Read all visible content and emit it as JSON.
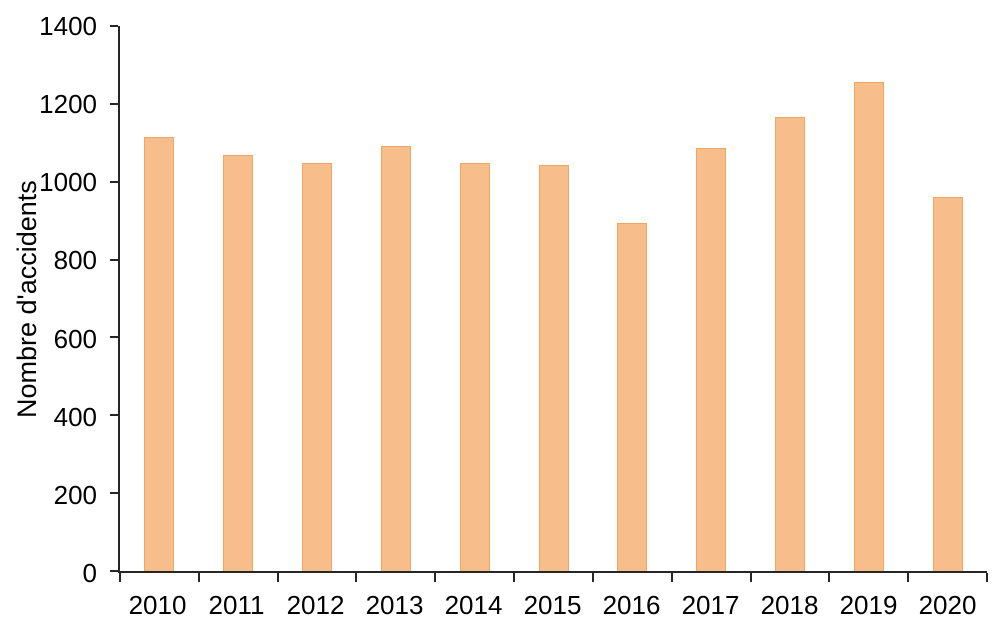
{
  "chart_data": {
    "type": "bar",
    "title": "",
    "categories": [
      "2010",
      "2011",
      "2012",
      "2013",
      "2014",
      "2015",
      "2016",
      "2017",
      "2018",
      "2019",
      "2020"
    ],
    "values": [
      1115,
      1068,
      1047,
      1092,
      1047,
      1044,
      895,
      1086,
      1165,
      1255,
      961
    ],
    "xlabel": "",
    "ylabel": "Nombre d'accidents",
    "ylim": [
      0,
      1400
    ],
    "ytick_step": 200,
    "yticks": [
      0,
      200,
      400,
      600,
      800,
      1000,
      1200,
      1400
    ],
    "grid": false,
    "legend": false,
    "colors": {
      "bar_fill": "#F7BD8B",
      "bar_border": "#EFA660",
      "axis": "#262626",
      "text": "#000000",
      "background": "#FFFFFF"
    }
  }
}
